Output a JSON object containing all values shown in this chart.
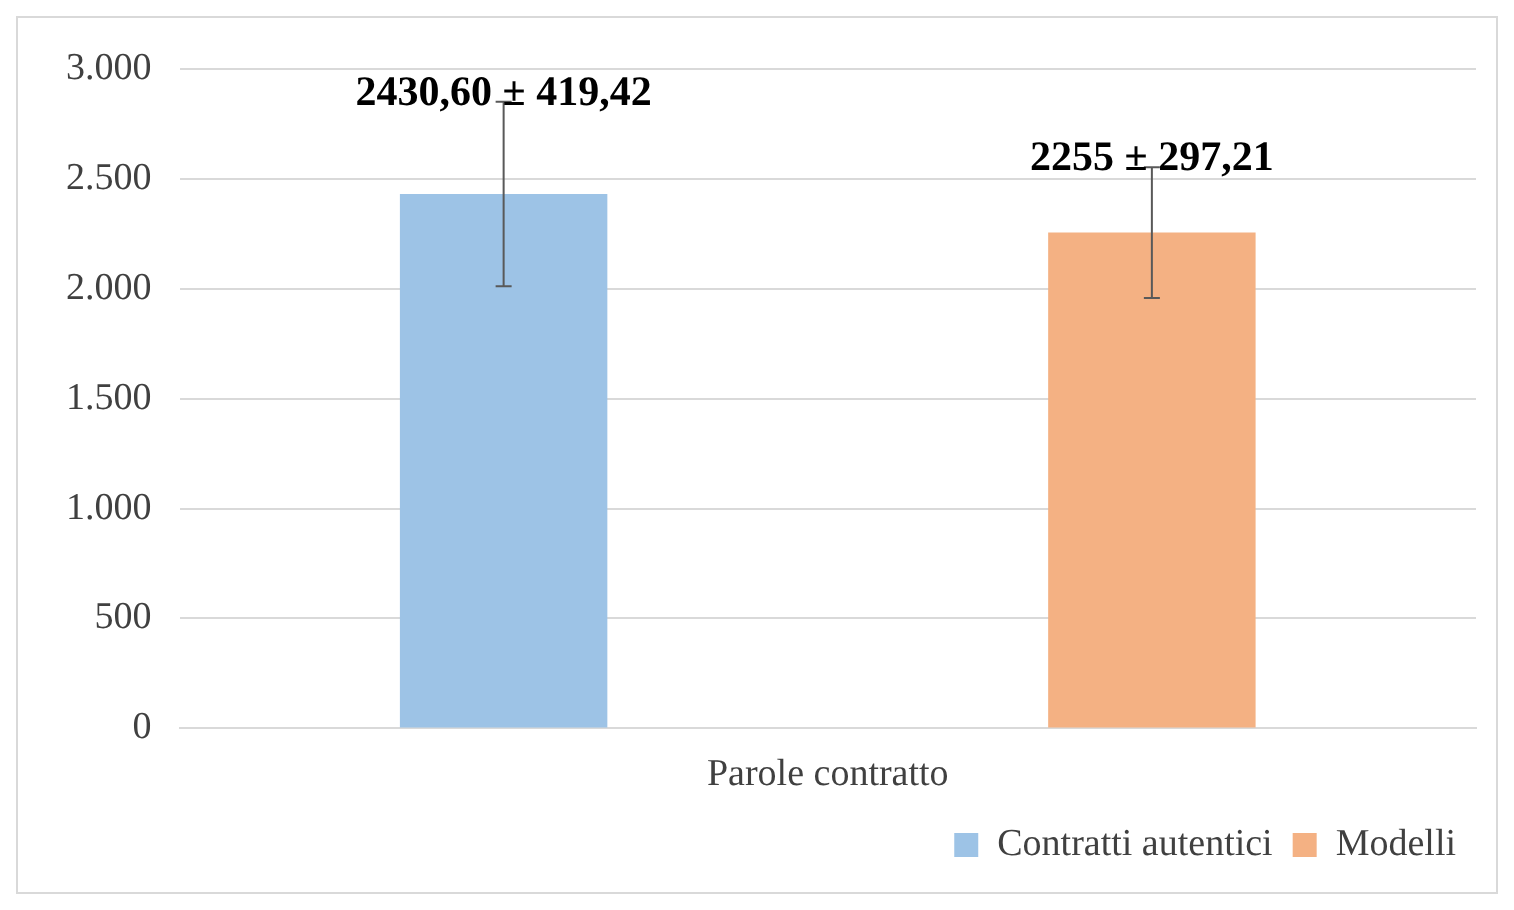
{
  "chart_data": {
    "type": "bar",
    "xlabel": "Parole contratto",
    "categories": [
      null
    ],
    "series": [
      {
        "name": "Contratti autentici",
        "color": "#9dc3e6",
        "values": [
          2430.6
        ],
        "errors": [
          419.42
        ],
        "value_labels": [
          "2430,60 ± 419,42"
        ]
      },
      {
        "name": "Modelli",
        "color": "#f4b183",
        "values": [
          2255
        ],
        "errors": [
          297.21
        ],
        "value_labels": [
          "2255 ± 297,21"
        ]
      }
    ],
    "ylim": [
      0,
      3000
    ],
    "yticks": [
      0,
      500,
      {
        "value": 1000,
        "label": "1.000"
      },
      {
        "value": 1500,
        "label": "1.500"
      },
      {
        "value": 2000,
        "label": "2.000"
      },
      {
        "value": 2500,
        "label": "2.500"
      },
      {
        "value": 3000,
        "label": "3.000"
      }
    ],
    "grid": "y",
    "legend": "bottom right"
  }
}
